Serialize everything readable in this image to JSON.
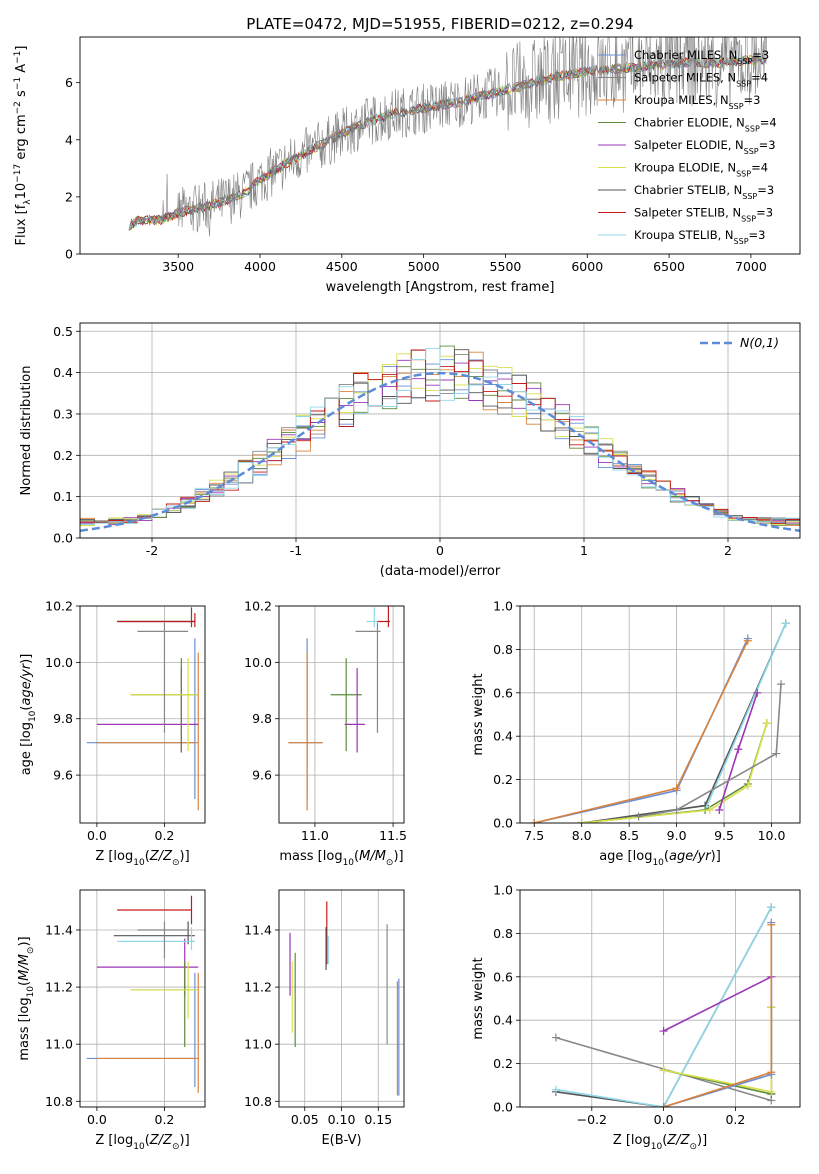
{
  "title": "PLATE=0472, MJD=51955, FIBERID=0212, z=0.294",
  "series": [
    {
      "name": "Chabrier MILES",
      "nssp": "3",
      "color": "#6a8fd6"
    },
    {
      "name": "Salpeter MILES",
      "nssp": "4",
      "color": "#888888"
    },
    {
      "name": "Kroupa MILES",
      "nssp": "3",
      "color": "#d9823b"
    },
    {
      "name": "Chabrier ELODIE",
      "nssp": "4",
      "color": "#5d8a3c"
    },
    {
      "name": "Salpeter ELODIE",
      "nssp": "3",
      "color": "#9b36b8"
    },
    {
      "name": "Kroupa ELODIE",
      "nssp": "4",
      "color": "#d8e04a"
    },
    {
      "name": "Chabrier STELIB",
      "nssp": "3",
      "color": "#555555"
    },
    {
      "name": "Salpeter STELIB",
      "nssp": "3",
      "color": "#c41a1a"
    },
    {
      "name": "Kroupa STELIB",
      "nssp": "3",
      "color": "#8fd8e8"
    }
  ],
  "chart_data": [
    {
      "id": "spectrum",
      "type": "line",
      "xlabel": "wavelength [Angstrom, rest frame]",
      "ylabel": "Flux [f_λ 10^-17 erg cm^-2 s^-1 A^-1]",
      "xlim": [
        2900,
        7300
      ],
      "ylim": [
        0,
        7.6
      ],
      "xticks": [
        3500,
        4000,
        4500,
        5000,
        5500,
        6000,
        6500,
        7000
      ],
      "yticks": [
        0,
        2,
        4,
        6
      ],
      "data_color": "#808080",
      "continuum": {
        "x": [
          3200,
          3250,
          3300,
          3400,
          3500,
          3700,
          3900,
          4000,
          4200,
          4400,
          4600,
          4800,
          5000,
          5200,
          5400,
          5600,
          5800,
          6000,
          6200,
          6400,
          6600,
          6800,
          7000,
          7100
        ],
        "y": [
          1.0,
          1.15,
          1.2,
          1.2,
          1.45,
          1.7,
          2.1,
          2.6,
          3.3,
          3.9,
          4.5,
          4.9,
          5.1,
          5.3,
          5.6,
          5.9,
          6.2,
          6.4,
          6.5,
          6.6,
          6.7,
          6.7,
          6.8,
          6.8
        ]
      },
      "legend": "upper right",
      "grid": false
    },
    {
      "id": "residuals",
      "type": "step-histogram",
      "xlabel": "(data-model)/error",
      "ylabel": "Normed distribution",
      "xlim": [
        -2.5,
        2.5
      ],
      "ylim": [
        0,
        0.52
      ],
      "xticks": [
        -2,
        -1,
        0,
        1,
        2
      ],
      "yticks": [
        0.0,
        0.1,
        0.2,
        0.3,
        0.4,
        0.5
      ],
      "reference": {
        "name": "N(0,1)",
        "color": "#5b8bd9"
      },
      "grid": true,
      "legend": "upper right"
    },
    {
      "id": "age_vs_Z",
      "type": "errorbar",
      "xlabel": "Z [log10(Z/Z⊙)]",
      "ylabel": "age [log10(age/yr)]",
      "xlim": [
        -0.05,
        0.32
      ],
      "ylim": [
        9.43,
        10.2
      ],
      "xticks": [
        0.0,
        0.2
      ],
      "yticks": [
        9.6,
        9.8,
        10.0,
        10.2
      ],
      "points": [
        {
          "s": 0,
          "x": 0.29,
          "y": 9.715,
          "xerr": [
            0.32,
            0.0
          ],
          "yerr": [
            0.2,
            0.37
          ]
        },
        {
          "s": 2,
          "x": 0.3,
          "y": 9.715,
          "xerr": [
            0.3,
            0.0
          ],
          "yerr": [
            0.24,
            0.32
          ]
        },
        {
          "s": 4,
          "x": 0.25,
          "y": 9.78,
          "xerr": [
            0.25,
            0.05
          ],
          "yerr": [
            0.1,
            0.2
          ]
        },
        {
          "s": 3,
          "x": 0.25,
          "y": 9.885,
          "xerr": [
            0.15,
            0.05
          ],
          "yerr": [
            0.2,
            0.13
          ]
        },
        {
          "s": 5,
          "x": 0.27,
          "y": 9.885,
          "xerr": [
            0.17,
            0.03
          ],
          "yerr": [
            0.2,
            0.13
          ]
        },
        {
          "s": 8,
          "x": 0.28,
          "y": 10.145,
          "xerr": [
            0.22,
            0.01
          ],
          "yerr": [
            0.02,
            0.05
          ]
        },
        {
          "s": 6,
          "x": 0.28,
          "y": 10.145,
          "xerr": [
            0.22,
            0.01
          ],
          "yerr": [
            0.02,
            0.05
          ]
        },
        {
          "s": 7,
          "x": 0.29,
          "y": 10.145,
          "xerr": [
            0.23,
            0.0
          ],
          "yerr": [
            0.02,
            0.03
          ]
        },
        {
          "s": 1,
          "x": 0.2,
          "y": 10.11,
          "xerr": [
            0.08,
            0.07
          ],
          "yerr": [
            0.36,
            0.03
          ]
        }
      ],
      "grid": true
    },
    {
      "id": "age_vs_mass",
      "type": "errorbar",
      "xlabel": "mass [log10(M/M⊙)]",
      "ylabel": "",
      "xlim": [
        10.77,
        11.57
      ],
      "ylim": [
        9.43,
        10.2
      ],
      "xticks": [
        11.0,
        11.5
      ],
      "yticks": [
        9.6,
        9.8,
        10.0,
        10.2
      ],
      "points": [
        {
          "s": 0,
          "x": 10.95,
          "y": 9.715,
          "xerr": [
            0.12,
            0.1
          ],
          "yerr": [
            0.2,
            0.37
          ]
        },
        {
          "s": 2,
          "x": 10.95,
          "y": 9.715,
          "xerr": [
            0.12,
            0.1
          ],
          "yerr": [
            0.24,
            0.32
          ]
        },
        {
          "s": 3,
          "x": 11.2,
          "y": 9.885,
          "xerr": [
            0.1,
            0.1
          ],
          "yerr": [
            0.2,
            0.13
          ]
        },
        {
          "s": 4,
          "x": 11.27,
          "y": 9.78,
          "xerr": [
            0.08,
            0.05
          ],
          "yerr": [
            0.1,
            0.2
          ]
        },
        {
          "s": 1,
          "x": 11.4,
          "y": 10.11,
          "xerr": [
            0.14,
            0.02
          ],
          "yerr": [
            0.36,
            0.03
          ]
        },
        {
          "s": 8,
          "x": 11.38,
          "y": 10.145,
          "xerr": [
            0.05,
            0.05
          ],
          "yerr": [
            0.02,
            0.05
          ]
        },
        {
          "s": 7,
          "x": 11.47,
          "y": 10.145,
          "xerr": [
            0.07,
            0.01
          ],
          "yerr": [
            0.02,
            0.07
          ]
        }
      ],
      "grid": true
    },
    {
      "id": "weight_vs_age",
      "type": "line",
      "xlabel": "age [log10(age/yr)]",
      "ylabel": "mass weight",
      "xlim": [
        7.35,
        10.3
      ],
      "ylim": [
        0,
        1.0
      ],
      "xticks": [
        7.5,
        8.0,
        8.5,
        9.0,
        9.5,
        10.0
      ],
      "yticks": [
        0.0,
        0.2,
        0.4,
        0.6,
        0.8,
        1.0
      ],
      "lines": [
        {
          "s": 0,
          "x": [
            7.5,
            9.0,
            9.75
          ],
          "y": [
            0.0,
            0.15,
            0.85
          ]
        },
        {
          "s": 2,
          "x": 7.5,
          "xv": [
            7.5,
            9.0,
            9.75
          ],
          "y": [
            0.0,
            0.16,
            0.84
          ]
        },
        {
          "s": 6,
          "x": [
            8.0,
            9.3,
            10.15
          ],
          "y": [
            0.0,
            0.08,
            0.92
          ]
        },
        {
          "s": 8,
          "x": [
            8.0,
            9.3,
            10.15
          ],
          "y": [
            0.0,
            0.06,
            0.92
          ]
        },
        {
          "s": 3,
          "x": [
            8.0,
            9.3,
            9.75,
            9.95
          ],
          "y": [
            0.0,
            0.06,
            0.18,
            0.46
          ]
        },
        {
          "s": 5,
          "x": [
            8.0,
            9.35,
            9.75,
            9.95
          ],
          "y": [
            0.0,
            0.06,
            0.17,
            0.46
          ]
        },
        {
          "s": 4,
          "x": [
            9.45,
            9.65,
            9.85
          ],
          "y": [
            0.06,
            0.34,
            0.6
          ]
        },
        {
          "s": 1,
          "x": [
            8.6,
            9.0,
            10.05,
            10.1
          ],
          "y": [
            0.03,
            0.06,
            0.32,
            0.64
          ]
        }
      ],
      "grid": true
    },
    {
      "id": "mass_vs_Z",
      "type": "errorbar",
      "xlabel": "Z [log10(Z/Z⊙)]",
      "ylabel": "mass [log10(M/M⊙)]",
      "xlim": [
        -0.05,
        0.32
      ],
      "ylim": [
        10.78,
        11.54
      ],
      "xticks": [
        0.0,
        0.2
      ],
      "yticks": [
        10.8,
        11.0,
        11.2,
        11.4
      ],
      "points": [
        {
          "s": 0,
          "x": 0.29,
          "y": 10.95,
          "xerr": [
            0.32,
            0.0
          ],
          "yerr": [
            0.1,
            0.3
          ]
        },
        {
          "s": 2,
          "x": 0.3,
          "y": 10.95,
          "xerr": [
            0.3,
            0.0
          ],
          "yerr": [
            0.12,
            0.3
          ]
        },
        {
          "s": 4,
          "x": 0.26,
          "y": 11.27,
          "xerr": [
            0.26,
            0.04
          ],
          "yerr": [
            0.1,
            0.1
          ]
        },
        {
          "s": 3,
          "x": 0.26,
          "y": 11.19,
          "xerr": [
            0.16,
            0.04
          ],
          "yerr": [
            0.2,
            0.1
          ]
        },
        {
          "s": 5,
          "x": 0.27,
          "y": 11.19,
          "xerr": [
            0.17,
            0.03
          ],
          "yerr": [
            0.1,
            0.1
          ]
        },
        {
          "s": 7,
          "x": 0.28,
          "y": 11.47,
          "xerr": [
            0.22,
            0.0
          ],
          "yerr": [
            0.05,
            0.05
          ]
        },
        {
          "s": 6,
          "x": 0.27,
          "y": 11.38,
          "xerr": [
            0.22,
            0.02
          ],
          "yerr": [
            0.03,
            0.05
          ]
        },
        {
          "s": 8,
          "x": 0.28,
          "y": 11.36,
          "xerr": [
            0.22,
            0.01
          ],
          "yerr": [
            0.03,
            0.05
          ]
        },
        {
          "s": 1,
          "x": 0.2,
          "y": 11.4,
          "xerr": [
            0.08,
            0.07
          ],
          "yerr": [
            0.1,
            0.03
          ]
        }
      ],
      "grid": true
    },
    {
      "id": "mass_vs_EBV",
      "type": "errorbar",
      "xlabel": "E(B-V)",
      "ylabel": "",
      "xlim": [
        0.015,
        0.185
      ],
      "ylim": [
        10.78,
        11.54
      ],
      "xticks": [
        0.05,
        0.1,
        0.15
      ],
      "yticks": [
        10.8,
        11.0,
        11.2,
        11.4
      ],
      "points": [
        {
          "s": 4,
          "x": 0.03,
          "y": 11.27,
          "xerr": [
            0,
            0
          ],
          "yerr": [
            0.1,
            0.12
          ]
        },
        {
          "s": 5,
          "x": 0.033,
          "y": 11.19,
          "xerr": [
            0,
            0
          ],
          "yerr": [
            0.15,
            0.1
          ]
        },
        {
          "s": 3,
          "x": 0.037,
          "y": 11.19,
          "xerr": [
            0,
            0
          ],
          "yerr": [
            0.2,
            0.13
          ]
        },
        {
          "s": 7,
          "x": 0.08,
          "y": 11.4,
          "xerr": [
            0,
            0
          ],
          "yerr": [
            0.12,
            0.1
          ]
        },
        {
          "s": 6,
          "x": 0.079,
          "y": 11.36,
          "xerr": [
            0,
            0
          ],
          "yerr": [
            0.1,
            0.05
          ]
        },
        {
          "s": 8,
          "x": 0.082,
          "y": 11.33,
          "xerr": [
            0,
            0
          ],
          "yerr": [
            0.05,
            0.05
          ]
        },
        {
          "s": 1,
          "x": 0.162,
          "y": 11.2,
          "xerr": [
            0,
            0
          ],
          "yerr": [
            0.2,
            0.22
          ]
        },
        {
          "s": 0,
          "x": 0.178,
          "y": 11.0,
          "xerr": [
            0,
            0
          ],
          "yerr": [
            0.18,
            0.23
          ]
        },
        {
          "s": 2,
          "x": 0.176,
          "y": 11.0,
          "xerr": [
            0,
            0
          ],
          "yerr": [
            0.18,
            0.22
          ]
        }
      ],
      "grid": true
    },
    {
      "id": "weight_vs_Z",
      "type": "line",
      "xlabel": "Z [log10(Z/Z⊙)]",
      "ylabel": "mass weight",
      "xlim": [
        -0.4,
        0.38
      ],
      "ylim": [
        0,
        1.0
      ],
      "xticks": [
        -0.2,
        0.0,
        0.2
      ],
      "yticks": [
        0.0,
        0.2,
        0.4,
        0.6,
        0.8,
        1.0
      ],
      "lines": [
        {
          "s": 1,
          "x": [
            -0.3,
            0.3
          ],
          "y": [
            0.32,
            0.03
          ]
        },
        {
          "s": 6,
          "x": [
            -0.3,
            0.0,
            0.3
          ],
          "y": [
            0.07,
            0.0,
            0.92
          ]
        },
        {
          "s": 8,
          "x": [
            -0.3,
            0.0,
            0.3
          ],
          "y": [
            0.08,
            0.0,
            0.92
          ]
        },
        {
          "s": 4,
          "x": [
            0.0,
            0.3,
            0.3
          ],
          "y": [
            0.35,
            0.6,
            0.06
          ]
        },
        {
          "s": 3,
          "x": [
            0.0,
            0.3,
            0.3
          ],
          "y": [
            0.17,
            0.06,
            0.46
          ]
        },
        {
          "s": 5,
          "x": [
            0.0,
            0.3,
            0.3
          ],
          "y": [
            0.17,
            0.07,
            0.46
          ]
        },
        {
          "s": 0,
          "x": [
            0.0,
            0.3,
            0.3
          ],
          "y": [
            0.0,
            0.15,
            0.85
          ]
        },
        {
          "s": 2,
          "x": [
            0.0,
            0.3,
            0.3
          ],
          "y": [
            0.0,
            0.16,
            0.84
          ]
        }
      ],
      "grid": true
    }
  ]
}
